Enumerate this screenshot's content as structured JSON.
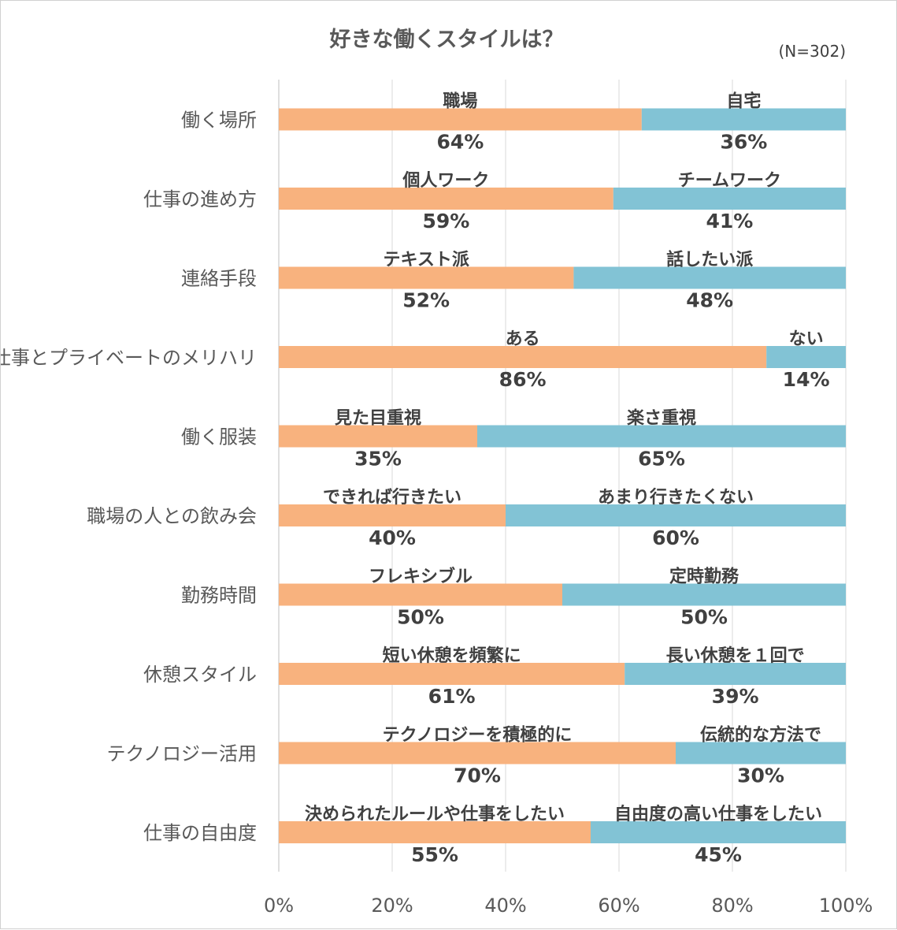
{
  "chart_data": {
    "type": "bar",
    "orientation": "horizontal",
    "stacked": "percent",
    "title": "好きな働くスタイルは？",
    "sample_size": "(N=302)",
    "xlabel": "",
    "ylabel": "",
    "xlim": [
      0,
      100
    ],
    "ticks": [
      "0%",
      "20%",
      "40%",
      "60%",
      "80%",
      "100%"
    ],
    "grid": true,
    "colors": {
      "left": "#f8b27e",
      "right": "#82c3d5"
    },
    "categories": [
      "働く場所",
      "仕事の進め方",
      "連絡手段",
      "仕事とプライベートのメリハリ",
      "働く服装",
      "職場の人との飲み会",
      "勤務時間",
      "休憩スタイル",
      "テクノロジー活用",
      "仕事の自由度"
    ],
    "series": [
      {
        "name": "left",
        "values": [
          64,
          59,
          52,
          86,
          35,
          40,
          50,
          61,
          70,
          55
        ],
        "labels": [
          "職場",
          "個人ワーク",
          "テキスト派",
          "ある",
          "見た目重視",
          "できれば行きたい",
          "フレキシブル",
          "短い休憩を頻繁に",
          "テクノロジーを積極的に",
          "決められたルールや仕事をしたい"
        ],
        "pct_labels": [
          "64%",
          "59%",
          "52%",
          "86%",
          "35%",
          "40%",
          "50%",
          "61%",
          "70%",
          "55%"
        ]
      },
      {
        "name": "right",
        "values": [
          36,
          41,
          48,
          14,
          65,
          60,
          50,
          39,
          30,
          45
        ],
        "labels": [
          "自宅",
          "チームワーク",
          "話したい派",
          "ない",
          "楽さ重視",
          "あまり行きたくない",
          "定時勤務",
          "長い休憩を１回で",
          "伝統的な方法で",
          "自由度の高い仕事をしたい"
        ],
        "pct_labels": [
          "36%",
          "41%",
          "48%",
          "14%",
          "65%",
          "60%",
          "50%",
          "39%",
          "30%",
          "45%"
        ]
      }
    ]
  }
}
